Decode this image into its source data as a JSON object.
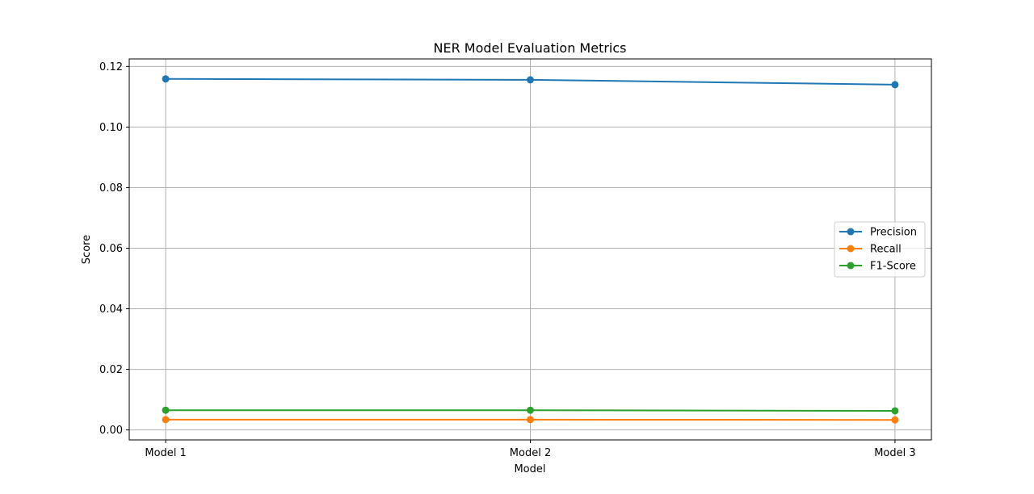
{
  "chart_data": {
    "type": "line",
    "title": "NER Model Evaluation Metrics",
    "xlabel": "Model",
    "ylabel": "Score",
    "categories": [
      "Model 1",
      "Model 2",
      "Model 3"
    ],
    "ylim": [
      -0.0033,
      0.1225
    ],
    "yticks": [
      "0.00",
      "0.02",
      "0.04",
      "0.06",
      "0.08",
      "0.10",
      "0.12"
    ],
    "grid": true,
    "legend_position": "center-right",
    "series": [
      {
        "name": "Precision",
        "color": "#1f77b4",
        "values": [
          0.1159,
          0.1156,
          0.114
        ]
      },
      {
        "name": "Recall",
        "color": "#ff7f0e",
        "values": [
          0.0034,
          0.0034,
          0.0033
        ]
      },
      {
        "name": "F1-Score",
        "color": "#2ca02c",
        "values": [
          0.0065,
          0.0065,
          0.0063
        ]
      }
    ]
  }
}
